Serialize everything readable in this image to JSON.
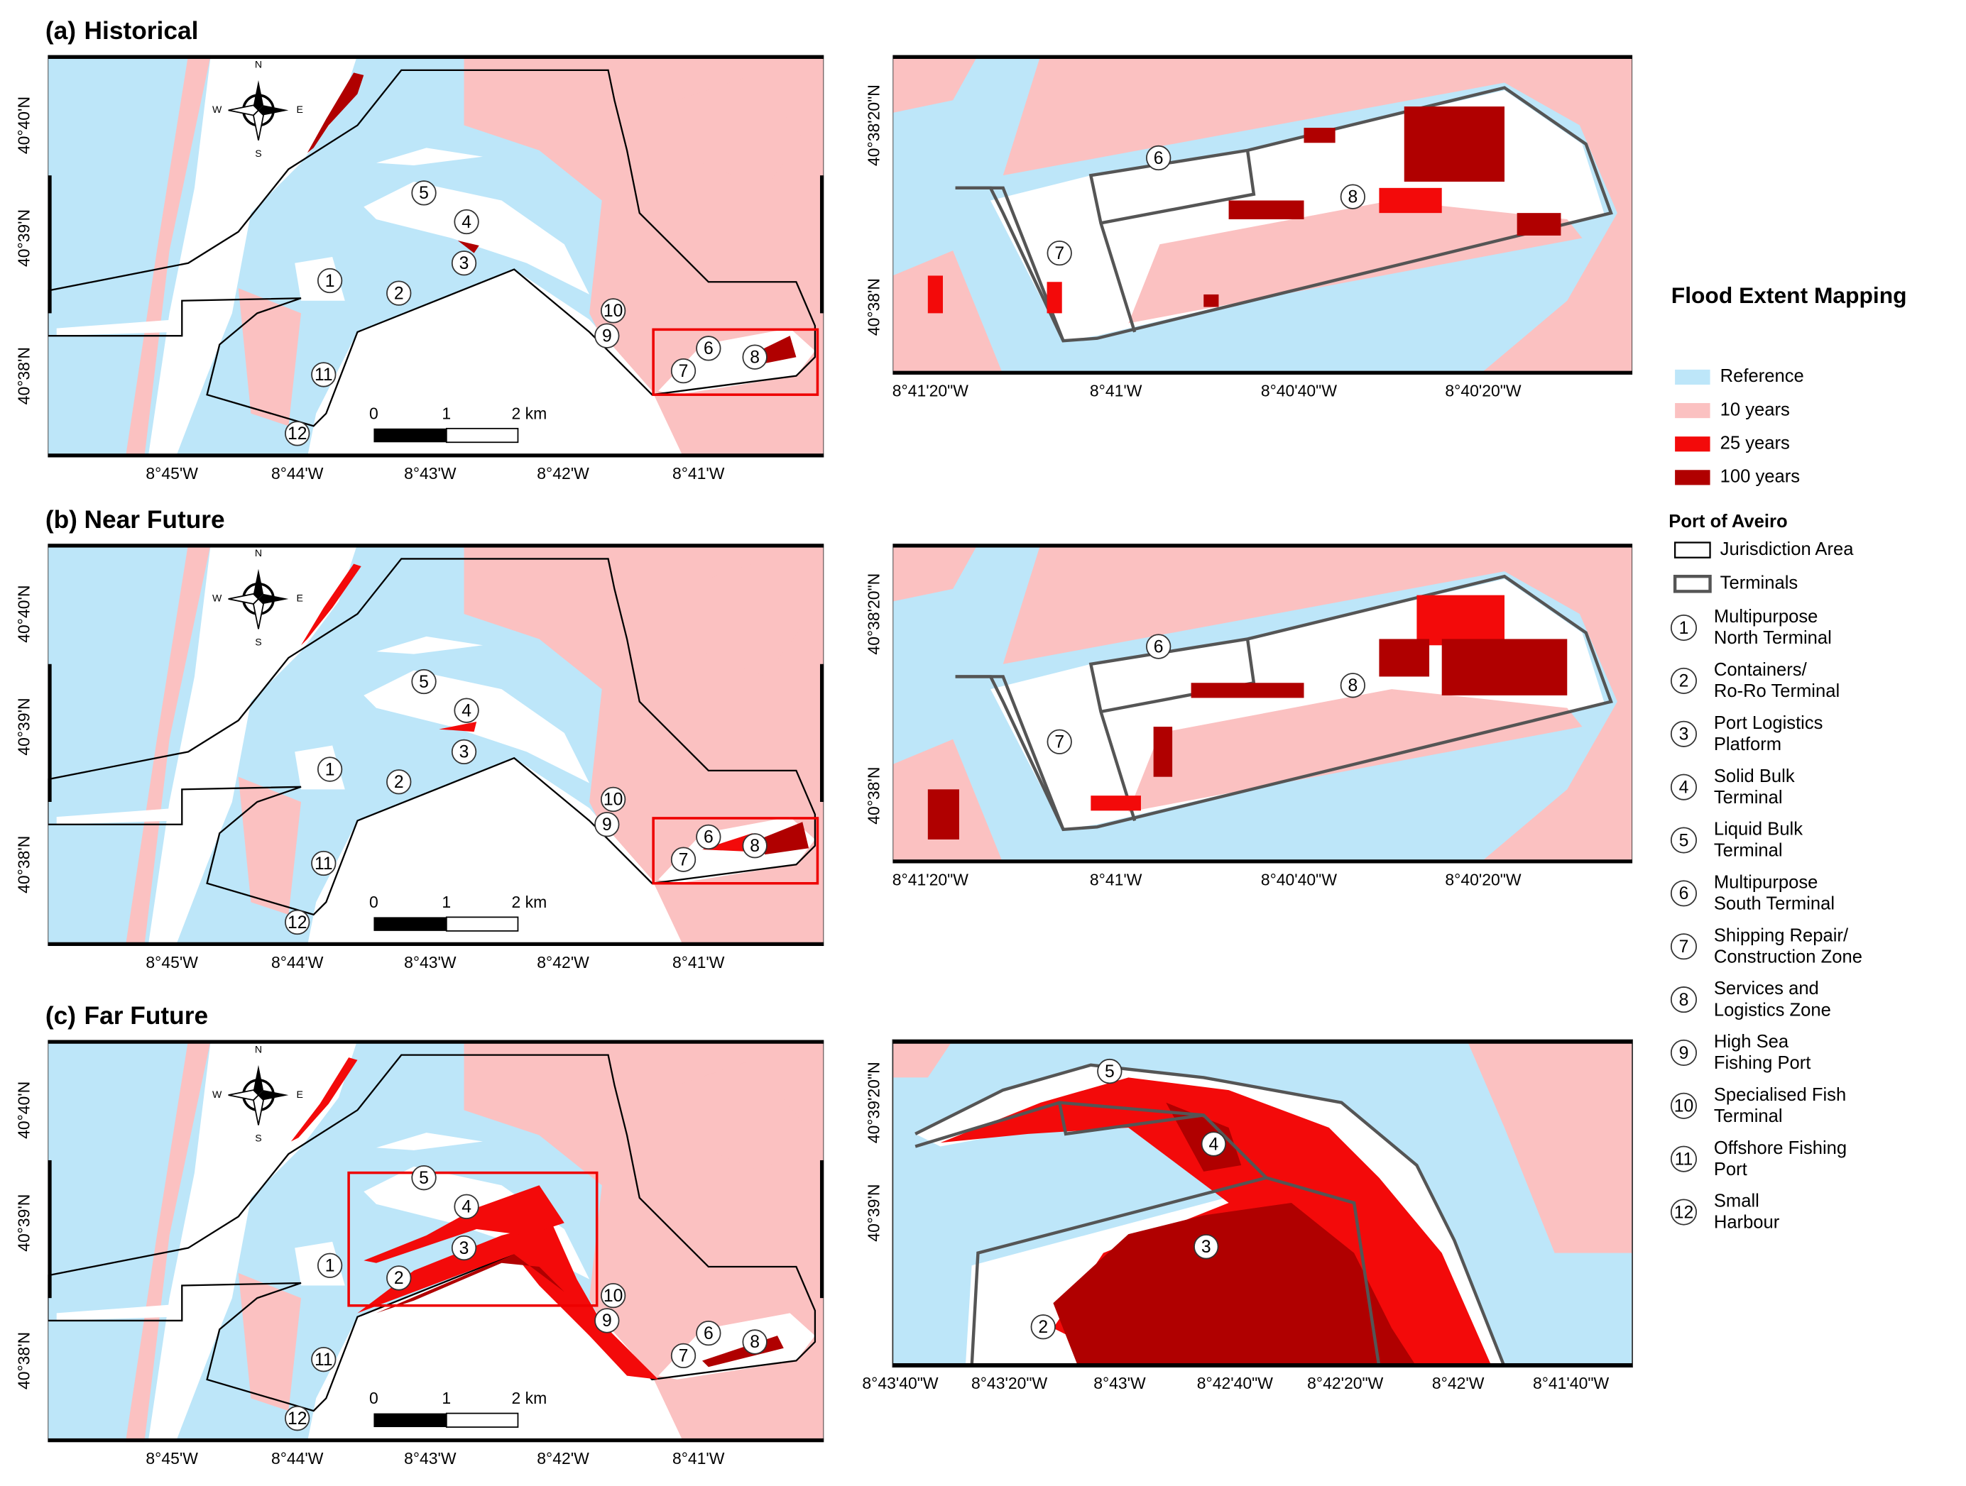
{
  "panels": [
    {
      "label": "(a)",
      "title": "Historical",
      "main_lat_labels": [
        "40°40'N",
        "40°39'N",
        "40°38'N"
      ],
      "main_lon_labels": [
        "8°45'W",
        "8°44'W",
        "8°43'W",
        "8°42'W",
        "8°41'W"
      ],
      "inset_lat_labels": [
        "40°38'20\"N",
        "40°38'N"
      ],
      "inset_lon_labels": [
        "8°41'20\"W",
        "8°41'W",
        "8°40'40\"W",
        "8°40'20\"W"
      ]
    },
    {
      "label": "(b)",
      "title": "Near Future",
      "main_lat_labels": [
        "40°40'N",
        "40°39'N",
        "40°38'N"
      ],
      "main_lon_labels": [
        "8°45'W",
        "8°44'W",
        "8°43'W",
        "8°42'W",
        "8°41'W"
      ],
      "inset_lat_labels": [
        "40°38'20\"N",
        "40°38'N"
      ],
      "inset_lon_labels": [
        "8°41'20\"W",
        "8°41'W",
        "8°40'40\"W",
        "8°40'20\"W"
      ]
    },
    {
      "label": "(c)",
      "title": "Far Future",
      "main_lat_labels": [
        "40°40'N",
        "40°39'N",
        "40°38'N"
      ],
      "main_lon_labels": [
        "8°45'W",
        "8°44'W",
        "8°43'W",
        "8°42'W",
        "8°41'W"
      ],
      "inset_lat_labels": [
        "40°39'20\"N",
        "40°39'N"
      ],
      "inset_lon_labels": [
        "8°43'40\"W",
        "8°43'20\"W",
        "8°43'W",
        "8°42'40\"W",
        "8°42'20\"W",
        "8°42'W",
        "8°41'40\"W"
      ]
    }
  ],
  "compass": {
    "north": "N",
    "south": "S",
    "west": "W",
    "east": "E"
  },
  "scale_bar": [
    "0",
    "1",
    "2 km"
  ],
  "legend": {
    "title": "Flood Extent Mapping",
    "classes": [
      {
        "name": "Reference",
        "color": "#bde6f9"
      },
      {
        "name": "10 years",
        "color": "#fbc1c1"
      },
      {
        "name": "25 years",
        "color": "#f30a0a"
      },
      {
        "name": "100 years",
        "color": "#b00000"
      }
    ],
    "port_title": "Port of Aveiro",
    "boundaries": [
      "Jurisdiction Area",
      "Terminals"
    ],
    "terminals": [
      {
        "number": "1",
        "name_lines": [
          "Multipurpose",
          "North Terminal"
        ]
      },
      {
        "number": "2",
        "name_lines": [
          "Containers/",
          "Ro-Ro Terminal"
        ]
      },
      {
        "number": "3",
        "name_lines": [
          "Port Logistics",
          "Platform"
        ]
      },
      {
        "number": "4",
        "name_lines": [
          "Solid Bulk",
          "Terminal"
        ]
      },
      {
        "number": "5",
        "name_lines": [
          "Liquid Bulk",
          "Terminal"
        ]
      },
      {
        "number": "6",
        "name_lines": [
          "Multipurpose",
          "South Terminal"
        ]
      },
      {
        "number": "7",
        "name_lines": [
          "Shipping Repair/",
          "Construction Zone"
        ]
      },
      {
        "number": "8",
        "name_lines": [
          "Services and",
          "Logistics Zone"
        ]
      },
      {
        "number": "9",
        "name_lines": [
          "High Sea",
          "Fishing Port"
        ]
      },
      {
        "number": "10",
        "name_lines": [
          "Specialised Fish",
          "Terminal"
        ]
      },
      {
        "number": "11",
        "name_lines": [
          "Offshore Fishing",
          "Port"
        ]
      },
      {
        "number": "12",
        "name_lines": [
          "Small",
          "Harbour"
        ]
      }
    ]
  }
}
